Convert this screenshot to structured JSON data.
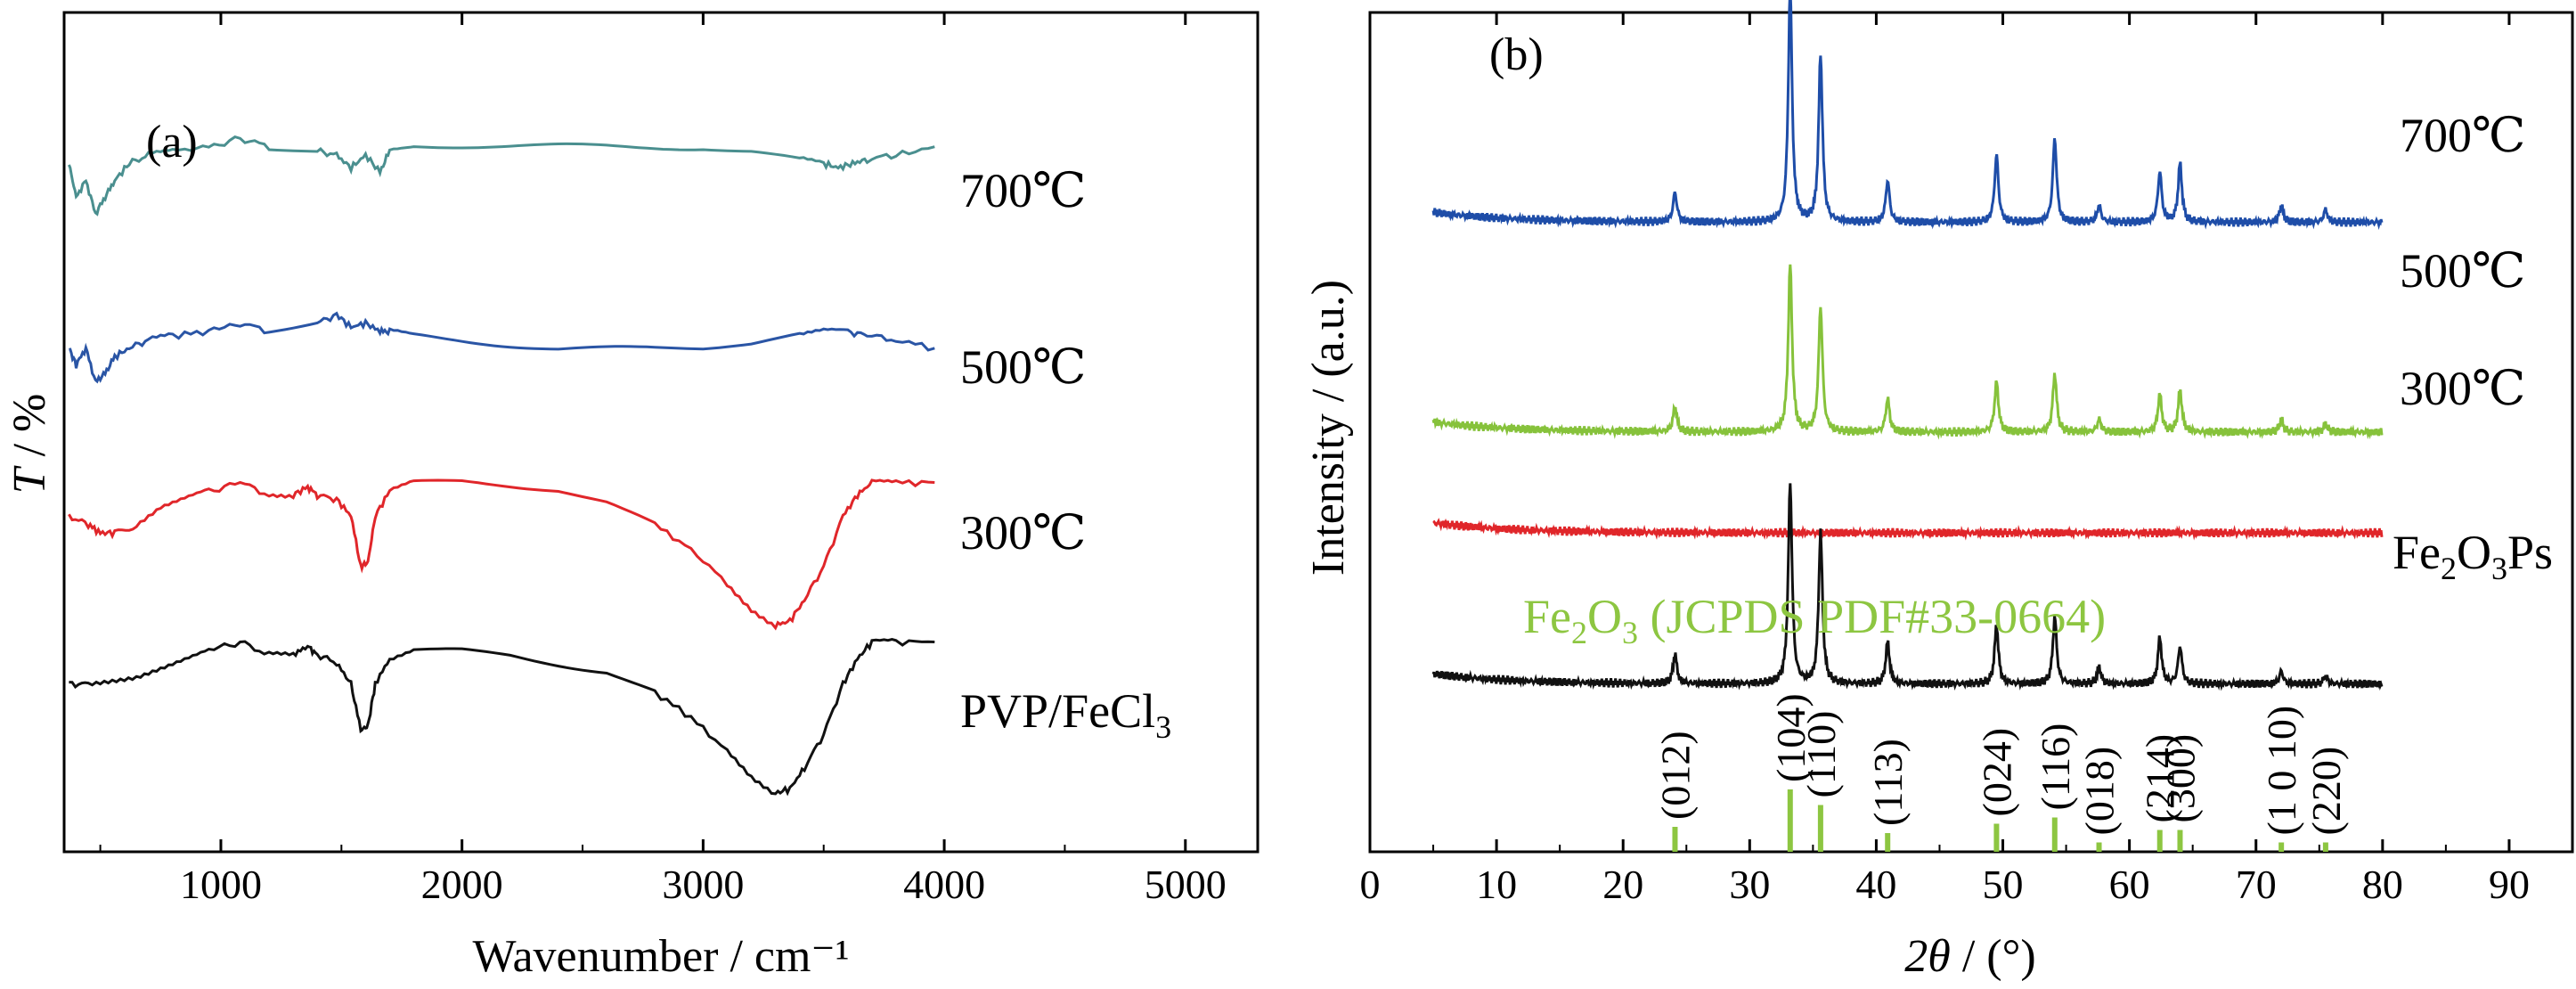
{
  "chart_data": [
    {
      "panel": "(a)",
      "type": "line",
      "xlabel": "Wavenumber / cm⁻¹",
      "ylabel_italic": "T",
      "ylabel_rest": " / %",
      "xlim": [
        350,
        5300
      ],
      "xticks": [
        1000,
        2000,
        3000,
        4000,
        5000
      ],
      "yticks_shown": false,
      "series": [
        {
          "name": "700℃",
          "color": "#4a8f8f",
          "offset": 0.8,
          "x": [
            370,
            400,
            440,
            480,
            520,
            560,
            620,
            700,
            800,
            950,
            1080,
            1200,
            1400,
            1480,
            1540,
            1600,
            1660,
            1700,
            1800,
            2000,
            2200,
            2400,
            2600,
            2800,
            3000,
            3200,
            3400,
            3500,
            3560,
            3620,
            3680,
            3800,
            3960
          ],
          "y": [
            0.02,
            -0.02,
            0.0,
            -0.04,
            -0.02,
            0.0,
            0.02,
            0.03,
            0.035,
            0.04,
            0.05,
            0.04,
            0.035,
            0.03,
            0.015,
            0.03,
            0.01,
            0.035,
            0.04,
            0.04,
            0.04,
            0.04,
            0.04,
            0.04,
            0.04,
            0.035,
            0.025,
            0.02,
            0.015,
            0.02,
            0.025,
            0.03,
            0.04
          ]
        },
        {
          "name": "500℃",
          "color": "#2a55a5",
          "offset": 0.6,
          "x": [
            370,
            400,
            440,
            480,
            520,
            560,
            620,
            700,
            800,
            950,
            1080,
            1200,
            1400,
            1480,
            1540,
            1600,
            1660,
            1700,
            1800,
            2000,
            2200,
            2400,
            2600,
            2800,
            3000,
            3200,
            3400,
            3500,
            3600,
            3680,
            3800,
            3960
          ],
          "y": [
            0.0,
            -0.02,
            0.0,
            -0.04,
            -0.03,
            -0.01,
            0.0,
            0.01,
            0.015,
            0.02,
            0.03,
            0.02,
            0.03,
            0.04,
            0.025,
            0.03,
            0.02,
            0.02,
            0.015,
            0.01,
            0.005,
            0.0,
            0.0,
            0.0,
            0.0,
            0.005,
            0.015,
            0.02,
            0.02,
            0.015,
            0.01,
            0.0
          ]
        },
        {
          "name": "300℃",
          "color": "#e0262a",
          "offset": 0.4,
          "x": [
            370,
            450,
            500,
            560,
            650,
            750,
            850,
            950,
            1080,
            1200,
            1300,
            1360,
            1400,
            1480,
            1540,
            1580,
            1610,
            1640,
            1700,
            1800,
            2000,
            2200,
            2400,
            2600,
            2800,
            2950,
            3100,
            3200,
            3300,
            3360,
            3420,
            3500,
            3580,
            3640,
            3700,
            3800,
            3960
          ],
          "y": [
            0.0,
            -0.01,
            -0.02,
            -0.02,
            -0.01,
            0.01,
            0.02,
            0.03,
            0.04,
            0.025,
            0.025,
            0.035,
            0.025,
            0.02,
            0.0,
            -0.06,
            -0.055,
            0.0,
            0.03,
            0.04,
            0.04,
            0.035,
            0.03,
            0.015,
            -0.01,
            -0.04,
            -0.08,
            -0.11,
            -0.13,
            -0.125,
            -0.1,
            -0.06,
            0.0,
            0.025,
            0.04,
            0.04,
            0.04
          ]
        },
        {
          "name": "PVP/FeCl₃",
          "color": "#111111",
          "offset": 0.2,
          "x": [
            370,
            450,
            550,
            650,
            750,
            850,
            950,
            1080,
            1200,
            1300,
            1360,
            1400,
            1480,
            1540,
            1580,
            1610,
            1640,
            1700,
            1800,
            2000,
            2200,
            2400,
            2600,
            2800,
            2950,
            3100,
            3200,
            3300,
            3360,
            3420,
            3500,
            3580,
            3640,
            3700,
            3800,
            3960
          ],
          "y": [
            0.0,
            0.0,
            0.005,
            0.01,
            0.02,
            0.03,
            0.04,
            0.05,
            0.035,
            0.035,
            0.045,
            0.035,
            0.025,
            0.0,
            -0.055,
            -0.05,
            0.0,
            0.03,
            0.04,
            0.04,
            0.035,
            0.025,
            0.015,
            -0.01,
            -0.04,
            -0.08,
            -0.11,
            -0.13,
            -0.125,
            -0.1,
            -0.06,
            0.0,
            0.03,
            0.05,
            0.05,
            0.05
          ]
        }
      ]
    },
    {
      "panel": "(b)",
      "type": "line",
      "xlabel_italic": "2θ",
      "xlabel_rest": " / (°)",
      "ylabel": "Intensity / (a.u.)",
      "xlim": [
        0,
        95
      ],
      "xticks": [
        0,
        10,
        20,
        30,
        40,
        50,
        60,
        70,
        80,
        90
      ],
      "yticks_shown": false,
      "x_range": [
        5,
        80
      ],
      "peaks_common": [
        24.1,
        33.2,
        35.6,
        40.9,
        49.5,
        54.1,
        57.6,
        62.4,
        64.0,
        72.0,
        75.5
      ],
      "series": [
        {
          "name": "700℃",
          "color": "#1e4da8",
          "offset": 0.75,
          "heights": [
            0.035,
            0.28,
            0.2,
            0.05,
            0.08,
            0.1,
            0.02,
            0.06,
            0.07,
            0.02,
            0.015
          ]
        },
        {
          "name": "500℃",
          "color": "#86c23b",
          "offset": 0.5,
          "heights": [
            0.03,
            0.2,
            0.15,
            0.04,
            0.06,
            0.07,
            0.015,
            0.045,
            0.05,
            0.015,
            0.01
          ]
        },
        {
          "name": "300℃",
          "color": "#e0262a",
          "offset": 0.38,
          "heights": [
            0,
            0,
            0,
            0,
            0,
            0,
            0,
            0,
            0,
            0,
            0
          ]
        },
        {
          "name": "Fe₂O₃Ps",
          "color": "#111111",
          "offset": 0.2,
          "heights": [
            0.035,
            0.24,
            0.18,
            0.05,
            0.07,
            0.08,
            0.02,
            0.055,
            0.045,
            0.015,
            0.01
          ]
        }
      ],
      "reference": {
        "name": "Fe₂O₃ (JCPDS PDF#33-0664)",
        "color": "#8dc641",
        "lines": [
          {
            "x": 24.1,
            "h": 0.4,
            "hkl": "(012)"
          },
          {
            "x": 33.2,
            "h": 1.0,
            "hkl": "(104)"
          },
          {
            "x": 35.6,
            "h": 0.75,
            "hkl": "(110)"
          },
          {
            "x": 40.9,
            "h": 0.3,
            "hkl": "(113)"
          },
          {
            "x": 49.5,
            "h": 0.45,
            "hkl": "(024)"
          },
          {
            "x": 54.1,
            "h": 0.55,
            "hkl": "(116)"
          },
          {
            "x": 57.6,
            "h": 0.15,
            "hkl": "(018)"
          },
          {
            "x": 62.4,
            "h": 0.35,
            "hkl": "(214)"
          },
          {
            "x": 64.0,
            "h": 0.35,
            "hkl": "(300)"
          },
          {
            "x": 72.0,
            "h": 0.15,
            "hkl": "(1 0 10)"
          },
          {
            "x": 75.5,
            "h": 0.15,
            "hkl": "(220)"
          }
        ]
      }
    }
  ]
}
